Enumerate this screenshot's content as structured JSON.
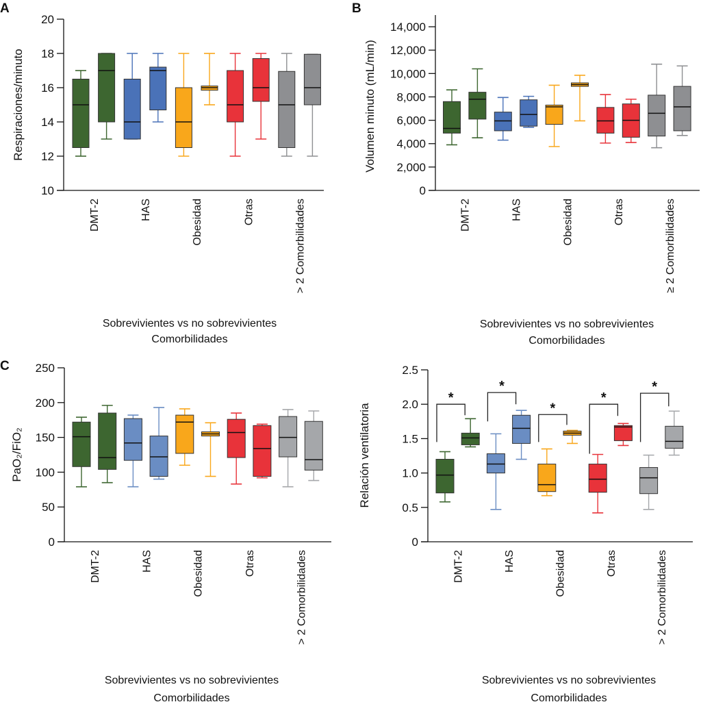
{
  "chart_data": [
    {
      "panel": "A",
      "type": "box",
      "ylabel": "Respiraciones/minuto",
      "ylim": [
        10,
        20
      ],
      "yticks": [
        10,
        12,
        14,
        16,
        18,
        20
      ],
      "ytick_labels": [
        "10",
        "12",
        "14",
        "16",
        "18",
        "20"
      ],
      "categories": [
        "DMT-2",
        "HAS",
        "Obesidad",
        "Otras",
        "> 2 Comorbilidades"
      ],
      "xlabel": [
        "Sobrevivientes vs no sobrevivientes",
        "Comorbilidades"
      ],
      "groups": [
        "Sobrevivientes",
        "No sobrevivientes"
      ],
      "boxes": [
        [
          [
            12,
            12.5,
            15,
            16.5,
            17
          ],
          [
            13,
            14,
            17,
            18,
            18
          ]
        ],
        [
          [
            13,
            13,
            14,
            16.5,
            18
          ],
          [
            14,
            14.7,
            17,
            17.2,
            18
          ]
        ],
        [
          [
            12,
            12.5,
            14,
            16,
            18
          ],
          [
            15,
            15.85,
            16,
            16.1,
            18
          ]
        ],
        [
          [
            12,
            14,
            15,
            17,
            18
          ],
          [
            13,
            15.2,
            16,
            17.7,
            18
          ]
        ],
        [
          [
            12,
            12.5,
            15,
            16.95,
            18
          ],
          [
            12,
            15,
            16,
            17.95,
            17.95
          ]
        ]
      ]
    },
    {
      "panel": "B",
      "type": "box",
      "ylabel": "Volumen minuto (mL/min)",
      "ylim": [
        0,
        15000
      ],
      "yticks": [
        0,
        2000,
        4000,
        6000,
        8000,
        10000,
        12000,
        14000
      ],
      "ytick_labels": [
        "0",
        "2,000",
        "4,000",
        "6,000",
        "8,000",
        "10,000",
        "12,000",
        "14,000"
      ],
      "categories": [
        "DMT-2",
        "HAS",
        "Obesidad",
        "Otras",
        "≥ 2 Comorbilidades"
      ],
      "xlabel": [
        "Sobrevivientes vs no sobrevivientes",
        "Comorbilidades"
      ],
      "groups": [
        "Sobrevivientes",
        "No sobrevivientes"
      ],
      "boxes": [
        [
          [
            3900,
            4900,
            5300,
            7600,
            8600
          ],
          [
            4500,
            6100,
            7800,
            8400,
            10400
          ]
        ],
        [
          [
            4300,
            5100,
            5950,
            6700,
            7950
          ],
          [
            5400,
            5500,
            6500,
            7750,
            8050
          ]
        ],
        [
          [
            3750,
            5650,
            7150,
            7300,
            9000
          ],
          [
            5950,
            8900,
            9050,
            9200,
            9850
          ]
        ],
        [
          [
            4050,
            4900,
            5950,
            7100,
            8200
          ],
          [
            4100,
            4550,
            6000,
            7400,
            7800
          ]
        ],
        [
          [
            3650,
            4650,
            6600,
            8150,
            10800
          ],
          [
            4700,
            5100,
            7150,
            8900,
            10650
          ]
        ]
      ]
    },
    {
      "panel": "C",
      "type": "box",
      "ylabel": "PaO₂/FiO₂",
      "ylim": [
        0,
        250
      ],
      "yticks": [
        0,
        50,
        100,
        150,
        200,
        250
      ],
      "ytick_labels": [
        "0",
        "50",
        "100",
        "150",
        "200",
        "250"
      ],
      "categories": [
        "DMT-2",
        "HAS",
        "Obesidad",
        "Otras",
        "> 2 Comorbilidades"
      ],
      "xlabel": [
        "Sobrevivientes vs no sobrevivientes",
        "Comorbilidades"
      ],
      "groups": [
        "Sobrevivientes",
        "No sobrevivientes"
      ],
      "boxes": [
        [
          [
            79,
            108,
            151,
            172,
            179
          ],
          [
            85,
            104,
            121,
            185,
            196
          ]
        ],
        [
          [
            79,
            117,
            142,
            177,
            182
          ],
          [
            90,
            94,
            122,
            152,
            193
          ]
        ],
        [
          [
            110,
            127,
            172,
            182,
            191
          ],
          [
            94,
            152,
            155,
            158,
            171
          ]
        ],
        [
          [
            83,
            121,
            157,
            176,
            185
          ],
          [
            92,
            94,
            134,
            167,
            169
          ]
        ],
        [
          [
            79,
            122,
            150,
            180,
            190
          ],
          [
            88,
            103,
            118,
            173,
            188
          ]
        ]
      ]
    },
    {
      "panel": "",
      "type": "box",
      "ylabel": "Relación ventilatoria",
      "ylim": [
        0,
        2.5
      ],
      "yticks": [
        0,
        0.5,
        1.0,
        1.5,
        2.0,
        2.5
      ],
      "ytick_labels": [
        "0",
        "0.5",
        "1.0",
        "1.5",
        "2.0",
        "2.5"
      ],
      "categories": [
        "DMT-2",
        "HAS",
        "Obesidad",
        "Otras",
        "> 2 Comorbilidades"
      ],
      "xlabel": [
        "Sobrevivientes vs no sobrevivientes",
        "Comorbilidades"
      ],
      "groups": [
        "Sobrevivientes",
        "No sobrevivientes"
      ],
      "boxes": [
        [
          [
            0.58,
            0.71,
            0.97,
            1.2,
            1.31
          ],
          [
            1.38,
            1.41,
            1.51,
            1.58,
            1.79
          ]
        ],
        [
          [
            0.47,
            1.0,
            1.13,
            1.28,
            1.57
          ],
          [
            1.2,
            1.43,
            1.65,
            1.84,
            1.91
          ]
        ],
        [
          [
            0.67,
            0.73,
            0.83,
            1.13,
            1.35
          ],
          [
            1.43,
            1.55,
            1.58,
            1.61,
            1.62
          ]
        ],
        [
          [
            0.42,
            0.72,
            0.91,
            1.13,
            1.27
          ],
          [
            1.4,
            1.47,
            1.67,
            1.69,
            1.72
          ]
        ],
        [
          [
            0.47,
            0.7,
            0.93,
            1.08,
            1.26
          ],
          [
            1.26,
            1.36,
            1.46,
            1.68,
            1.9
          ]
        ]
      ],
      "significance": [
        {
          "label": "*",
          "top": 2.0,
          "left_end": 1.45,
          "right_end": 1.84
        },
        {
          "label": "*",
          "top": 2.17,
          "left_end": 1.75,
          "right_end": 2.0
        },
        {
          "label": "*",
          "top": 1.85,
          "left_end": 1.45,
          "right_end": 1.7
        },
        {
          "label": "*",
          "top": 2.0,
          "left_end": 1.28,
          "right_end": 1.83
        },
        {
          "label": "*",
          "top": 2.16,
          "left_end": 1.45,
          "right_end": 1.97
        }
      ]
    }
  ],
  "colors": {
    "panels": [
      [
        "#3d6630",
        "#f9a71b",
        "#4a72b8",
        "#e8333a",
        "#8e8f92"
      ],
      [
        "#3d6630",
        "#f9a71b",
        "#4a72b8",
        "#e8333a",
        "#8e8f92"
      ],
      [
        "#3d6630",
        "#f9a71b",
        "#6a8dc3",
        "#e8333a",
        "#a5a7aa"
      ],
      [
        "#3d6630",
        "#f9a71b",
        "#6a8dc3",
        "#e8333a",
        "#a5a7aa"
      ]
    ]
  }
}
